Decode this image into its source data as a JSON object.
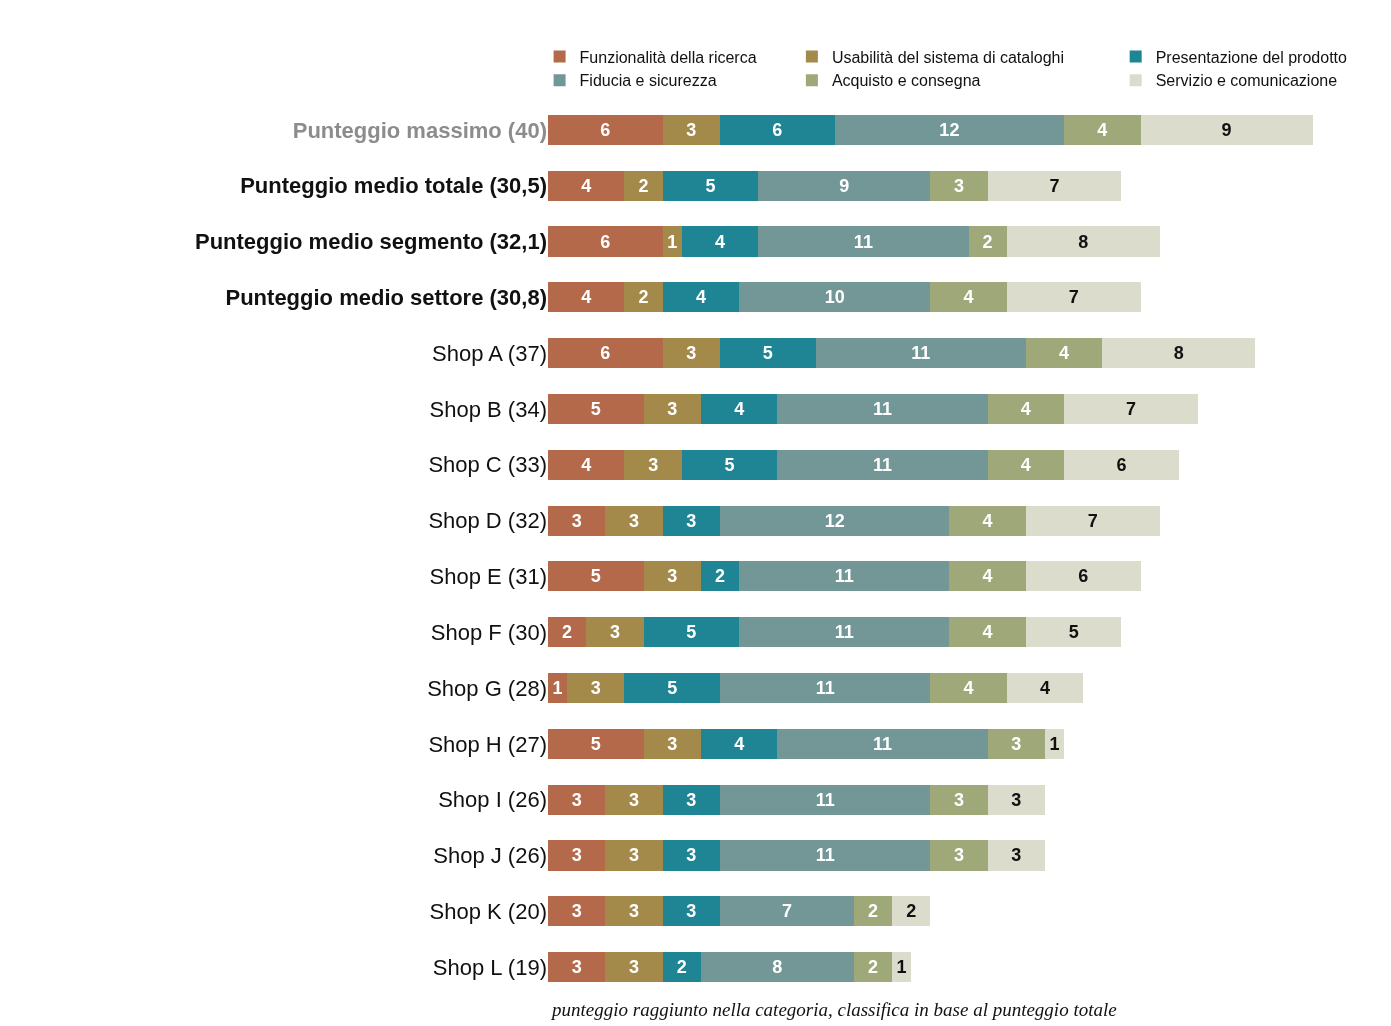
{
  "chart_data": {
    "type": "bar",
    "orientation": "horizontal",
    "stacked": true,
    "data_labels": true,
    "legend": "top right",
    "tick_labels": "y",
    "categories": [
      "Punteggio massimo (40)",
      "Punteggio medio totale (30,5)",
      "Punteggio medio segmento (32,1)",
      "Punteggio medio settore (30,8)",
      "Shop A (37)",
      "Shop B (34)",
      "Shop C (33)",
      "Shop D (32)",
      "Shop E (31)",
      "Shop F (30)",
      "Shop G (28)",
      "Shop H (27)",
      "Shop I (26)",
      "Shop J (26)",
      "Shop K (20)",
      "Shop L (19)"
    ],
    "xlim": [
      0,
      44
    ],
    "series": [
      {
        "name": "Funzionalità della ricerca",
        "color": "#b5694b",
        "values": [
          6,
          4,
          6,
          4,
          6,
          5,
          4,
          3,
          5,
          2,
          1,
          5,
          3,
          3,
          3,
          3
        ]
      },
      {
        "name": "Usabilità del sistema di cataloghi",
        "color": "#a38a4a",
        "values": [
          3,
          2,
          1,
          2,
          3,
          3,
          3,
          3,
          3,
          3,
          3,
          3,
          3,
          3,
          3,
          3
        ]
      },
      {
        "name": "Presentazione del prodotto",
        "color": "#1f8494",
        "values": [
          6,
          5,
          4,
          4,
          5,
          4,
          5,
          3,
          2,
          5,
          5,
          4,
          3,
          3,
          3,
          2
        ]
      },
      {
        "name": "Fiducia e sicurezza",
        "color": "#739797",
        "values": [
          12,
          9,
          11,
          10,
          11,
          11,
          11,
          12,
          11,
          11,
          11,
          11,
          11,
          11,
          7,
          8
        ]
      },
      {
        "name": "Acquisto e consegna",
        "color": "#9ea878",
        "values": [
          4,
          3,
          2,
          4,
          4,
          4,
          4,
          4,
          4,
          4,
          4,
          3,
          3,
          3,
          2,
          2
        ]
      },
      {
        "name": "Servizio e comunicazione",
        "color": "#dcdccc",
        "values": [
          9,
          7,
          8,
          7,
          8,
          7,
          6,
          7,
          6,
          5,
          4,
          1,
          3,
          3,
          2,
          1
        ]
      }
    ],
    "annotations": [
      "punteggio raggiunto nella categoria, classifica in base al punteggio totale"
    ]
  }
}
